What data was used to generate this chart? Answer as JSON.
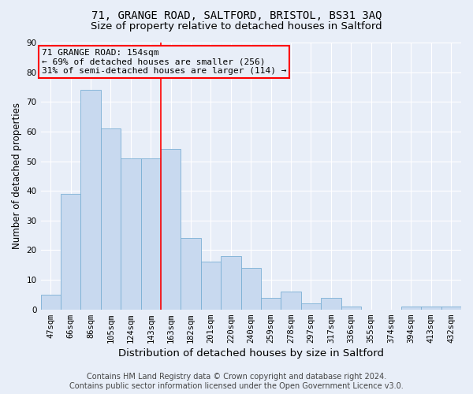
{
  "title_line1": "71, GRANGE ROAD, SALTFORD, BRISTOL, BS31 3AQ",
  "title_line2": "Size of property relative to detached houses in Saltford",
  "xlabel": "Distribution of detached houses by size in Saltford",
  "ylabel": "Number of detached properties",
  "bar_color": "#c8d9ef",
  "bar_edge_color": "#7aafd4",
  "background_color": "#e8eef8",
  "grid_color": "#ffffff",
  "categories": [
    "47sqm",
    "66sqm",
    "86sqm",
    "105sqm",
    "124sqm",
    "143sqm",
    "163sqm",
    "182sqm",
    "201sqm",
    "220sqm",
    "240sqm",
    "259sqm",
    "278sqm",
    "297sqm",
    "317sqm",
    "336sqm",
    "355sqm",
    "374sqm",
    "394sqm",
    "413sqm",
    "432sqm"
  ],
  "values": [
    5,
    39,
    74,
    61,
    51,
    51,
    54,
    24,
    16,
    18,
    14,
    4,
    6,
    2,
    4,
    1,
    0,
    0,
    1,
    1,
    1
  ],
  "ylim": [
    0,
    90
  ],
  "yticks": [
    0,
    10,
    20,
    30,
    40,
    50,
    60,
    70,
    80,
    90
  ],
  "annotation_line1": "71 GRANGE ROAD: 154sqm",
  "annotation_line2": "← 69% of detached houses are smaller (256)",
  "annotation_line3": "31% of semi-detached houses are larger (114) →",
  "red_line_x": 5.5,
  "footer_line1": "Contains HM Land Registry data © Crown copyright and database right 2024.",
  "footer_line2": "Contains public sector information licensed under the Open Government Licence v3.0.",
  "title_fontsize": 10,
  "subtitle_fontsize": 9.5,
  "xlabel_fontsize": 9.5,
  "ylabel_fontsize": 8.5,
  "tick_fontsize": 7.5,
  "annotation_fontsize": 8,
  "footer_fontsize": 7
}
